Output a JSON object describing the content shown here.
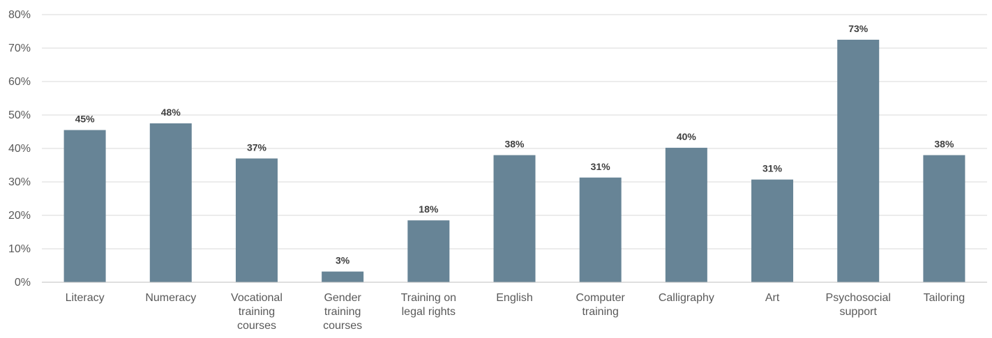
{
  "chart_data": {
    "type": "bar",
    "categories": [
      [
        "Literacy"
      ],
      [
        "Numeracy"
      ],
      [
        "Vocational",
        "training",
        "courses"
      ],
      [
        "Gender",
        "training",
        "courses"
      ],
      [
        "Training on",
        "legal rights"
      ],
      [
        "English"
      ],
      [
        "Computer",
        "training"
      ],
      [
        "Calligraphy"
      ],
      [
        "Art"
      ],
      [
        "Psychosocial",
        "support"
      ],
      [
        "Tailoring"
      ]
    ],
    "values": [
      45.5,
      47.5,
      37,
      3.2,
      18.5,
      38,
      31.3,
      40.2,
      30.7,
      72.5,
      38
    ],
    "data_labels": [
      "45%",
      "48%",
      "37%",
      "3%",
      "18%",
      "38%",
      "31%",
      "40%",
      "31%",
      "73%",
      "38%"
    ],
    "ylim": [
      0,
      80
    ],
    "yticks": [
      0,
      10,
      20,
      30,
      40,
      50,
      60,
      70,
      80
    ],
    "ytick_labels": [
      "0%",
      "10%",
      "20%",
      "30%",
      "40%",
      "50%",
      "60%",
      "70%",
      "80%"
    ],
    "grid": true,
    "bar_color": "#678496",
    "title": "",
    "xlabel": "",
    "ylabel": ""
  }
}
